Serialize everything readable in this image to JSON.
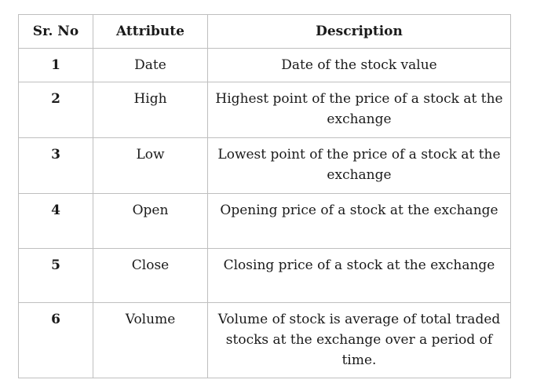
{
  "table": {
    "headers": [
      "Sr. No",
      "Attribute",
      "Description"
    ],
    "rows": [
      {
        "no": "1",
        "attribute": "Date",
        "description": "Date of the stock value"
      },
      {
        "no": "2",
        "attribute": "High",
        "description": "Highest  point of the price of a stock at the exchange"
      },
      {
        "no": "3",
        "attribute": "Low",
        "description": "Lowest point of the price of a stock at the exchange"
      },
      {
        "no": "4",
        "attribute": "Open",
        "description": "Opening price of a stock at the exchange"
      },
      {
        "no": "5",
        "attribute": "Close",
        "description": "Closing price of a stock at the exchange"
      },
      {
        "no": "6",
        "attribute": "Volume",
        "description": "Volume of stock is average of total traded stocks at the exchange over a period of time."
      }
    ]
  }
}
